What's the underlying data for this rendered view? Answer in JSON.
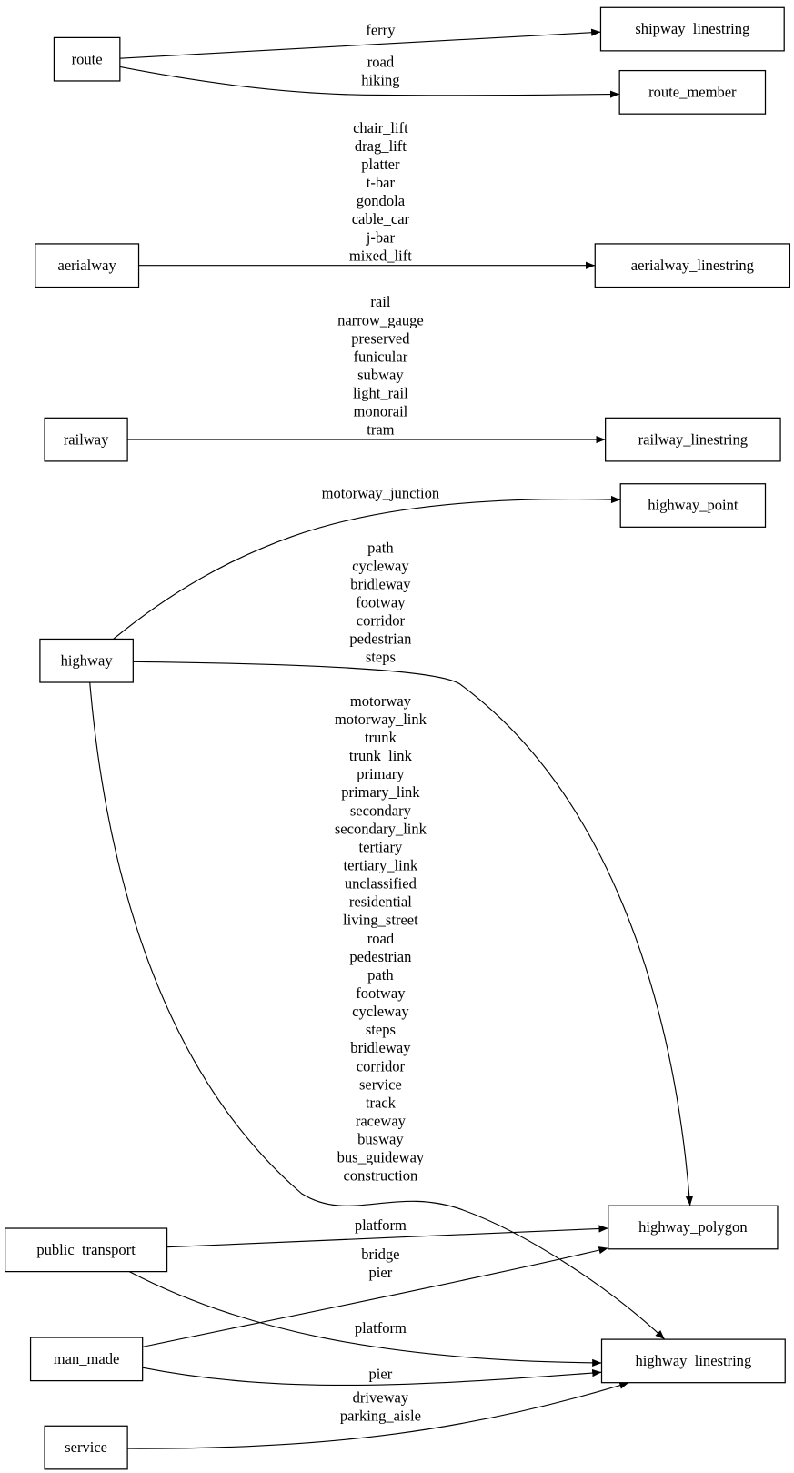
{
  "nodes": [
    {
      "id": "route",
      "label": "route"
    },
    {
      "id": "shipway_linestring",
      "label": "shipway_linestring"
    },
    {
      "id": "route_member",
      "label": "route_member"
    },
    {
      "id": "aerialway",
      "label": "aerialway"
    },
    {
      "id": "aerialway_linestring",
      "label": "aerialway_linestring"
    },
    {
      "id": "railway",
      "label": "railway"
    },
    {
      "id": "railway_linestring",
      "label": "railway_linestring"
    },
    {
      "id": "highway_point",
      "label": "highway_point"
    },
    {
      "id": "highway",
      "label": "highway"
    },
    {
      "id": "highway_polygon",
      "label": "highway_polygon"
    },
    {
      "id": "highway_linestring",
      "label": "highway_linestring"
    },
    {
      "id": "public_transport",
      "label": "public_transport"
    },
    {
      "id": "man_made",
      "label": "man_made"
    },
    {
      "id": "service",
      "label": "service"
    }
  ],
  "edges": [
    {
      "from": "route",
      "to": "shipway_linestring",
      "labels": [
        "ferry"
      ]
    },
    {
      "from": "route",
      "to": "route_member",
      "labels": [
        "road",
        "hiking"
      ]
    },
    {
      "from": "aerialway",
      "to": "aerialway_linestring",
      "labels": [
        "chair_lift",
        "drag_lift",
        "platter",
        "t-bar",
        "gondola",
        "cable_car",
        "j-bar",
        "mixed_lift"
      ]
    },
    {
      "from": "railway",
      "to": "railway_linestring",
      "labels": [
        "rail",
        "narrow_gauge",
        "preserved",
        "funicular",
        "subway",
        "light_rail",
        "monorail",
        "tram"
      ]
    },
    {
      "from": "highway",
      "to": "highway_point",
      "labels": [
        "motorway_junction"
      ]
    },
    {
      "from": "highway",
      "to": "highway_polygon",
      "labels": [
        "path",
        "cycleway",
        "bridleway",
        "footway",
        "corridor",
        "pedestrian",
        "steps"
      ]
    },
    {
      "from": "highway",
      "to": "highway_linestring",
      "labels": [
        "motorway",
        "motorway_link",
        "trunk",
        "trunk_link",
        "primary",
        "primary_link",
        "secondary",
        "secondary_link",
        "tertiary",
        "tertiary_link",
        "unclassified",
        "residential",
        "living_street",
        "road",
        "pedestrian",
        "path",
        "footway",
        "cycleway",
        "steps",
        "bridleway",
        "corridor",
        "service",
        "track",
        "raceway",
        "busway",
        "bus_guideway",
        "construction"
      ]
    },
    {
      "from": "public_transport",
      "to": "highway_polygon",
      "labels": [
        "platform"
      ]
    },
    {
      "from": "man_made",
      "to": "highway_polygon",
      "labels": [
        "bridge",
        "pier"
      ]
    },
    {
      "from": "public_transport",
      "to": "highway_linestring",
      "labels": [
        "platform"
      ]
    },
    {
      "from": "man_made",
      "to": "highway_linestring",
      "labels": [
        "pier"
      ]
    },
    {
      "from": "service",
      "to": "highway_linestring",
      "labels": [
        "driveway",
        "parking_aisle"
      ]
    }
  ]
}
